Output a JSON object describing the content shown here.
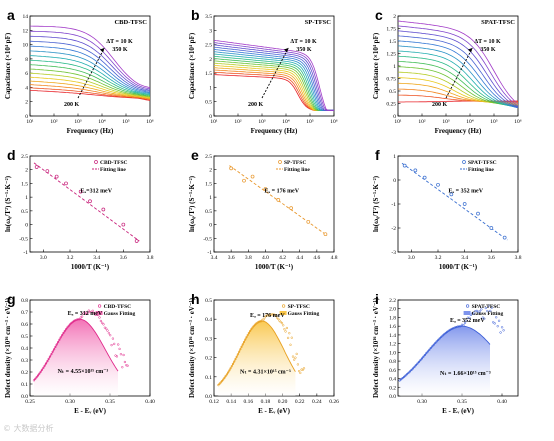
{
  "watermark": "© 大数据分析",
  "rows": [
    [
      {
        "id": "a",
        "label": "a",
        "title": "CBD-TFSC",
        "type": "capacitance",
        "color": "#b0188a",
        "xlabel": "Frequency (Hz)",
        "ylabel": "Capacitance (×10⁴ pF)",
        "xticks": [
          "10¹",
          "10²",
          "10³",
          "10⁴",
          "10⁵",
          "10⁶"
        ],
        "ylim": [
          0,
          14
        ],
        "yticks": [
          0,
          2,
          4,
          6,
          8,
          10,
          12,
          14
        ],
        "annotations": {
          "delta": "ΔT = 10 K",
          "high": "350 K",
          "low": "200 K"
        }
      },
      {
        "id": "b",
        "label": "b",
        "title": "SP-TFSC",
        "type": "capacitance",
        "color": "#e08a00",
        "xlabel": "Frequency (Hz)",
        "ylabel": "Capacitance (×10⁴ pF)",
        "xticks": [
          "10¹",
          "10²",
          "10³",
          "10⁴",
          "10⁵",
          "10⁶"
        ],
        "ylim": [
          0,
          3.5
        ],
        "yticks": [
          0,
          0.5,
          1.0,
          1.5,
          2.0,
          2.5,
          3.0,
          3.5
        ],
        "annotations": {
          "delta": "ΔT = 10 K",
          "high": "350 K",
          "low": "200 K"
        }
      },
      {
        "id": "c",
        "label": "c",
        "title": "SPAT-TFSC",
        "type": "capacitance",
        "color": "#3050d0",
        "xlabel": "Frequency (Hz)",
        "ylabel": "Capacitance (×10⁴ pF)",
        "xticks": [
          "10¹",
          "10²",
          "10³",
          "10⁴",
          "10⁵",
          "10⁶"
        ],
        "ylim": [
          0,
          2.0
        ],
        "yticks": [
          0,
          0.25,
          0.5,
          0.75,
          1.0,
          1.25,
          1.5,
          1.75,
          2.0
        ],
        "annotations": {
          "delta": "ΔT = 10 K",
          "high": "350 K",
          "low": "200 K"
        }
      }
    ],
    [
      {
        "id": "d",
        "label": "d",
        "title": "CBD-TFSC",
        "legend2": "Fitting line",
        "type": "arrhenius",
        "color": "#c8207a",
        "xlabel": "1000/T (K⁻¹)",
        "ylabel": "ln(ω₀/T²) (S⁻¹·K⁻²)",
        "xlim": [
          2.9,
          3.8
        ],
        "xticks": [
          3.0,
          3.2,
          3.4,
          3.6,
          3.8
        ],
        "ylim": [
          -1.0,
          2.5
        ],
        "yticks": [
          -1.0,
          -0.5,
          0.0,
          0.5,
          1.0,
          1.5,
          2.0,
          2.5
        ],
        "ea": "Eₐ=312 meV",
        "points": [
          [
            2.95,
            2.1
          ],
          [
            3.03,
            1.95
          ],
          [
            3.1,
            1.75
          ],
          [
            3.17,
            1.5
          ],
          [
            3.28,
            1.2
          ],
          [
            3.35,
            0.85
          ],
          [
            3.45,
            0.55
          ],
          [
            3.6,
            0.0
          ],
          [
            3.7,
            -0.6
          ]
        ],
        "fit": [
          [
            2.93,
            2.25
          ],
          [
            3.72,
            -0.6
          ]
        ]
      },
      {
        "id": "e",
        "label": "e",
        "title": "SP-TFSC",
        "legend2": "Fitting line",
        "type": "arrhenius",
        "color": "#e8962a",
        "xlabel": "1000/T (K⁻¹)",
        "ylabel": "ln(ω₀/T²) (S⁻¹·K⁻²)",
        "xlim": [
          3.4,
          4.8
        ],
        "xticks": [
          3.4,
          3.6,
          3.8,
          4.0,
          4.2,
          4.4,
          4.6,
          4.8
        ],
        "ylim": [
          -1.0,
          2.5
        ],
        "yticks": [
          -1.0,
          -0.5,
          0.0,
          0.5,
          1.0,
          1.5,
          2.0,
          2.5
        ],
        "ea": "Eₐ = 176 meV",
        "points": [
          [
            3.6,
            2.05
          ],
          [
            3.75,
            1.6
          ],
          [
            3.85,
            1.75
          ],
          [
            4.0,
            1.3
          ],
          [
            4.15,
            0.9
          ],
          [
            4.3,
            0.6
          ],
          [
            4.5,
            0.1
          ],
          [
            4.7,
            -0.35
          ]
        ],
        "fit": [
          [
            3.58,
            2.15
          ],
          [
            4.72,
            -0.4
          ]
        ]
      },
      {
        "id": "f",
        "label": "f",
        "title": "SPAT-TFSC",
        "legend2": "Fitting line",
        "type": "arrhenius",
        "color": "#3a6fd0",
        "xlabel": "1000/T (K⁻¹)",
        "ylabel": "ln(ω₀/T²) (S⁻¹·K⁻²)",
        "xlim": [
          2.9,
          3.8
        ],
        "xticks": [
          3.0,
          3.2,
          3.4,
          3.6,
          3.8
        ],
        "ylim": [
          -3.0,
          1.0
        ],
        "yticks": [
          -3,
          -2,
          -1,
          0,
          1
        ],
        "ea": "Eₐ = 352 meV",
        "points": [
          [
            2.95,
            0.6
          ],
          [
            3.03,
            0.4
          ],
          [
            3.1,
            0.1
          ],
          [
            3.2,
            -0.2
          ],
          [
            3.3,
            -0.6
          ],
          [
            3.4,
            -1.0
          ],
          [
            3.5,
            -1.4
          ],
          [
            3.6,
            -2.0
          ],
          [
            3.7,
            -2.4
          ]
        ],
        "fit": [
          [
            2.93,
            0.7
          ],
          [
            3.72,
            -2.5
          ]
        ]
      }
    ],
    [
      {
        "id": "g",
        "label": "g",
        "title": "CBD-TFSC",
        "legend2": "Gauss Fitting",
        "type": "dos",
        "color": "#e0288a",
        "fill": "#f26bb2",
        "xlabel": "E - Eᵥ (eV)",
        "ylabel": "Defect density (×10¹⁶ cm⁻³ · eV⁻¹)",
        "xlim": [
          0.25,
          0.4
        ],
        "xticks": [
          0.25,
          0.3,
          0.35,
          0.4
        ],
        "xtickfmt": 2,
        "ylim": [
          0,
          0.8
        ],
        "yticks": [
          0,
          0.1,
          0.2,
          0.3,
          0.4,
          0.5,
          0.6,
          0.7,
          0.8
        ],
        "ea": "Eₐ = 312 meV",
        "nt": "Nₜ = 4.55×10¹⁵ cm⁻³",
        "gauss": {
          "mu": 0.312,
          "sigma": 0.032,
          "amp": 0.64,
          "start": 0.255,
          "end": 0.36
        },
        "scatter_end": 0.372
      },
      {
        "id": "h",
        "label": "h",
        "title": "SP-TFSC",
        "legend2": "Gauss Fitting",
        "type": "dos",
        "color": "#e8a020",
        "fill": "#f9c64a",
        "xlabel": "E - Eᵥ (eV)",
        "ylabel": "Defect density (×10¹⁶ cm⁻³ · eV⁻¹)",
        "xlim": [
          0.12,
          0.26
        ],
        "xticks": [
          0.12,
          0.14,
          0.16,
          0.18,
          0.2,
          0.22,
          0.24,
          0.26
        ],
        "xtickfmt": 2,
        "ylim": [
          0,
          0.5
        ],
        "yticks": [
          0,
          0.1,
          0.2,
          0.3,
          0.4,
          0.5
        ],
        "ea": "Eₐ = 176 meV",
        "nt": "Nₜ = 4.31×10¹⁵ cm⁻³",
        "gauss": {
          "mu": 0.176,
          "sigma": 0.026,
          "amp": 0.39,
          "start": 0.125,
          "end": 0.215
        },
        "scatter_end": 0.225
      },
      {
        "id": "i",
        "label": "i",
        "title": "SPAT-TFSC",
        "legend2": "Gauss Fitting",
        "type": "dos",
        "color": "#3c5fd8",
        "fill": "#7d93ec",
        "xlabel": "E - Eᵥ (eV)",
        "ylabel": "Defect density (×10¹⁶ cm⁻³ · eV⁻¹)",
        "xlim": [
          0.27,
          0.42
        ],
        "xticks": [
          0.3,
          0.35,
          0.4
        ],
        "xtickfmt": 2,
        "ylim": [
          0,
          2.2
        ],
        "yticks": [
          0,
          0.2,
          0.4,
          0.6,
          0.8,
          1.0,
          1.2,
          1.4,
          1.6,
          1.8,
          2.0,
          2.2
        ],
        "ea": "Eₐ = 352 meV",
        "nt": "Nₜ = 1.66×10¹⁵ cm⁻³",
        "gauss": {
          "mu": 0.35,
          "sigma": 0.045,
          "amp": 1.6,
          "start": 0.272,
          "end": 0.385
        },
        "scatter_end": 0.402
      }
    ]
  ],
  "chart_data": [
    {
      "type": "line",
      "panel": "a",
      "title": "CBD-TFSC",
      "xlabel": "Frequency (Hz)",
      "ylabel": "Capacitance (×10⁴ pF)",
      "x_scale": "log",
      "xlim": [
        10,
        1000000
      ],
      "ylim": [
        0,
        14
      ],
      "series_note_temperature_range": [
        "200 K",
        "350 K"
      ],
      "delta": "ΔT = 10 K"
    },
    {
      "type": "line",
      "panel": "b",
      "title": "SP-TFSC",
      "xlabel": "Frequency (Hz)",
      "ylabel": "Capacitance (×10⁴ pF)",
      "x_scale": "log",
      "xlim": [
        10,
        1000000
      ],
      "ylim": [
        0,
        3.5
      ]
    },
    {
      "type": "line",
      "panel": "c",
      "title": "SPAT-TFSC",
      "xlabel": "Frequency (Hz)",
      "ylabel": "Capacitance (×10⁴ pF)",
      "x_scale": "log",
      "xlim": [
        10,
        1000000
      ],
      "ylim": [
        0,
        2.0
      ]
    },
    {
      "type": "scatter",
      "panel": "d",
      "title": "CBD-TFSC",
      "xlabel": "1000/T (K⁻¹)",
      "ylabel": "ln(ω₀/T²)",
      "x": [
        2.95,
        3.03,
        3.1,
        3.17,
        3.28,
        3.35,
        3.45,
        3.6,
        3.7
      ],
      "y": [
        2.1,
        1.95,
        1.75,
        1.5,
        1.2,
        0.85,
        0.55,
        0.0,
        -0.6
      ]
    },
    {
      "type": "scatter",
      "panel": "e",
      "title": "SP-TFSC",
      "xlabel": "1000/T (K⁻¹)",
      "ylabel": "ln(ω₀/T²)",
      "x": [
        3.6,
        3.75,
        3.85,
        4.0,
        4.15,
        4.3,
        4.5,
        4.7
      ],
      "y": [
        2.05,
        1.6,
        1.75,
        1.3,
        0.9,
        0.6,
        0.1,
        -0.35
      ]
    },
    {
      "type": "scatter",
      "panel": "f",
      "title": "SPAT-TFSC",
      "xlabel": "1000/T (K⁻¹)",
      "ylabel": "ln(ω₀/T²)",
      "x": [
        2.95,
        3.03,
        3.1,
        3.2,
        3.3,
        3.4,
        3.5,
        3.6,
        3.7
      ],
      "y": [
        0.6,
        0.4,
        0.1,
        -0.2,
        -0.6,
        -1.0,
        -1.4,
        -2.0,
        -2.4
      ]
    },
    {
      "type": "area",
      "panel": "g",
      "title": "CBD-TFSC",
      "peak_x": 0.312,
      "peak_y": 0.64
    },
    {
      "type": "area",
      "panel": "h",
      "title": "SP-TFSC",
      "peak_x": 0.176,
      "peak_y": 0.39
    },
    {
      "type": "area",
      "panel": "i",
      "title": "SPAT-TFSC",
      "peak_x": 0.35,
      "peak_y": 1.6
    }
  ]
}
